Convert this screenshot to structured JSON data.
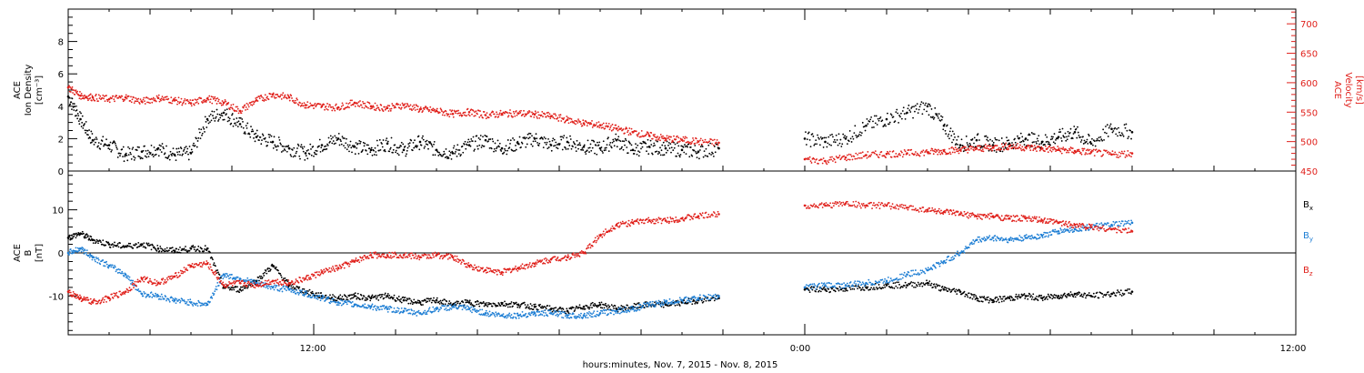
{
  "x_axis": {
    "label": "hours:minutes, Nov.  7, 2015 - Nov.  8, 2015",
    "tick_labels": [
      "12:00",
      "0:00",
      "12:00"
    ]
  },
  "colors": {
    "black": "#000000",
    "red": "#e0201b",
    "blue": "#1f7fd4"
  },
  "chart_data": [
    {
      "type": "scatter",
      "panel": "plasma",
      "ylabel": [
        "ACE",
        "Ion Density",
        "[cm⁻³]"
      ],
      "ylabel_right": [
        "ACE",
        "Velocity",
        "[km/s]"
      ],
      "ylim": [
        0,
        10
      ],
      "yticks": [
        0,
        2,
        4,
        6,
        8
      ],
      "ylim_right": [
        450,
        725
      ],
      "yticks_right": [
        450,
        500,
        550,
        600,
        650,
        700
      ],
      "xlim_hours": [
        6,
        36
      ],
      "gap_hours": [
        22,
        24
      ],
      "series": [
        {
          "axis": "left",
          "color": "black",
          "x_hours": [
            6.0,
            6.3,
            6.6,
            7.0,
            7.4,
            7.8,
            8.2,
            8.6,
            9.0,
            9.4,
            9.8,
            10.2,
            10.6,
            11.0,
            11.4,
            11.8,
            12.2,
            12.6,
            13.0,
            13.4,
            13.8,
            14.2,
            14.6,
            15.0,
            15.4,
            15.8,
            16.2,
            16.6,
            17.0,
            17.4,
            17.8,
            18.2,
            18.6,
            19.0,
            19.4,
            19.8,
            20.2,
            20.6,
            21.0,
            21.4,
            21.9,
            24.0,
            24.5,
            25.0,
            25.5,
            26.0,
            26.5,
            27.0,
            27.4,
            27.8,
            28.2,
            28.6,
            29.0,
            29.4,
            29.8,
            30.2,
            30.6,
            31.0,
            31.5,
            32.0
          ],
          "values": [
            4.6,
            3.2,
            1.9,
            1.6,
            1.0,
            1.2,
            1.4,
            1.0,
            1.1,
            3.2,
            3.6,
            2.9,
            2.1,
            1.8,
            1.4,
            1.1,
            1.6,
            2.0,
            1.5,
            1.3,
            1.7,
            1.3,
            1.8,
            1.3,
            1.1,
            1.6,
            1.9,
            1.4,
            1.7,
            2.0,
            1.6,
            1.8,
            1.5,
            1.4,
            1.9,
            1.3,
            1.5,
            1.4,
            1.3,
            1.2,
            1.4,
            2.0,
            1.8,
            2.0,
            2.8,
            3.2,
            3.6,
            4.0,
            2.8,
            1.6,
            1.9,
            1.6,
            1.7,
            2.0,
            1.8,
            2.1,
            2.4,
            1.7,
            2.6,
            2.4
          ]
        },
        {
          "axis": "right",
          "color": "red",
          "x_hours": [
            6.0,
            6.3,
            6.6,
            7.0,
            7.4,
            7.8,
            8.2,
            8.6,
            9.0,
            9.4,
            9.8,
            10.2,
            10.6,
            11.0,
            11.4,
            11.8,
            12.2,
            12.6,
            13.0,
            13.4,
            13.8,
            14.2,
            14.6,
            15.0,
            15.4,
            15.8,
            16.2,
            16.6,
            17.0,
            17.4,
            17.8,
            18.2,
            18.6,
            19.0,
            19.4,
            19.8,
            20.2,
            20.6,
            21.0,
            21.4,
            21.9,
            24.0,
            24.5,
            25.0,
            25.5,
            26.0,
            26.5,
            27.0,
            27.4,
            27.8,
            28.2,
            28.6,
            29.0,
            29.4,
            29.8,
            30.2,
            30.6,
            31.0,
            31.5,
            32.0
          ],
          "values": [
            592,
            578,
            575,
            572,
            575,
            568,
            574,
            570,
            565,
            573,
            566,
            552,
            570,
            580,
            575,
            562,
            560,
            558,
            566,
            560,
            557,
            562,
            555,
            552,
            547,
            550,
            545,
            547,
            548,
            546,
            543,
            537,
            531,
            528,
            522,
            516,
            510,
            505,
            503,
            500,
            498,
            470,
            467,
            473,
            477,
            479,
            480,
            482,
            484,
            486,
            488,
            490,
            492,
            490,
            488,
            486,
            484,
            482,
            478,
            480
          ]
        }
      ]
    },
    {
      "type": "scatter",
      "panel": "magnetic_field",
      "ylabel": [
        "ACE",
        "B",
        "[nT]"
      ],
      "ylim": [
        -19,
        19
      ],
      "yticks": [
        -10,
        0,
        10
      ],
      "xlim_hours": [
        6,
        36
      ],
      "gap_hours": [
        22,
        24
      ],
      "legend": [
        "Bx",
        "By",
        "Bz"
      ],
      "legend_placement": "right",
      "series": [
        {
          "name": "Bx",
          "color": "black",
          "x_hours": [
            6.0,
            6.3,
            6.6,
            7.0,
            7.4,
            7.8,
            8.2,
            8.6,
            9.0,
            9.4,
            9.8,
            10.2,
            10.6,
            11.0,
            11.4,
            11.8,
            12.2,
            12.6,
            13.0,
            13.4,
            13.8,
            14.2,
            14.6,
            15.0,
            15.4,
            15.8,
            16.2,
            16.6,
            17.0,
            17.4,
            17.8,
            18.2,
            18.6,
            19.0,
            19.4,
            19.8,
            20.2,
            20.6,
            21.0,
            21.4,
            21.9,
            24.0,
            24.5,
            25.0,
            25.5,
            26.0,
            26.5,
            27.0,
            27.4,
            27.8,
            28.2,
            28.6,
            29.0,
            29.4,
            29.8,
            30.2,
            30.6,
            31.0,
            31.5,
            32.0
          ],
          "values": [
            3.5,
            4.5,
            3.0,
            2.0,
            1.5,
            2.0,
            1.0,
            0.5,
            1.0,
            1.0,
            -8.0,
            -8.5,
            -6.5,
            -3.0,
            -7.5,
            -9.0,
            -10.0,
            -10.5,
            -10.0,
            -10.5,
            -10.0,
            -11.0,
            -11.5,
            -11.0,
            -12.0,
            -11.5,
            -12.0,
            -11.8,
            -12.0,
            -12.5,
            -13.0,
            -13.5,
            -12.5,
            -12.0,
            -13.0,
            -12.5,
            -12.0,
            -12.0,
            -11.5,
            -11.0,
            -10.5,
            -8.5,
            -8.5,
            -8.3,
            -8.0,
            -7.5,
            -7.5,
            -7.0,
            -8.5,
            -9.0,
            -10.5,
            -11.0,
            -10.5,
            -10.0,
            -10.5,
            -10.0,
            -9.5,
            -10.0,
            -9.5,
            -9.0
          ]
        },
        {
          "name": "By",
          "color": "blue",
          "x_hours": [
            6.0,
            6.3,
            6.6,
            7.0,
            7.4,
            7.8,
            8.2,
            8.6,
            9.0,
            9.4,
            9.8,
            10.2,
            10.6,
            11.0,
            11.4,
            11.8,
            12.2,
            12.6,
            13.0,
            13.4,
            13.8,
            14.2,
            14.6,
            15.0,
            15.4,
            15.8,
            16.2,
            16.6,
            17.0,
            17.4,
            17.8,
            18.2,
            18.6,
            19.0,
            19.4,
            19.8,
            20.2,
            20.6,
            21.0,
            21.4,
            21.9,
            24.0,
            24.5,
            25.0,
            25.5,
            26.0,
            26.5,
            27.0,
            27.4,
            27.8,
            28.2,
            28.6,
            29.0,
            29.4,
            29.8,
            30.2,
            30.6,
            31.0,
            31.5,
            32.0
          ],
          "values": [
            0.0,
            1.0,
            -1.0,
            -3.0,
            -5.0,
            -9.5,
            -10.0,
            -11.0,
            -11.5,
            -12.0,
            -5.0,
            -6.0,
            -7.0,
            -8.0,
            -8.5,
            -9.5,
            -10.5,
            -11.5,
            -12.0,
            -12.5,
            -13.0,
            -13.5,
            -14.0,
            -13.0,
            -12.5,
            -13.0,
            -14.0,
            -14.5,
            -14.5,
            -14.0,
            -14.0,
            -14.5,
            -14.5,
            -14.0,
            -13.5,
            -13.0,
            -12.0,
            -11.5,
            -11.0,
            -10.5,
            -10.0,
            -8.0,
            -7.5,
            -7.5,
            -7.0,
            -6.5,
            -5.0,
            -4.0,
            -2.0,
            0.0,
            3.0,
            3.5,
            3.0,
            3.5,
            4.0,
            5.0,
            5.5,
            6.0,
            6.5,
            7.0
          ]
        },
        {
          "name": "Bz",
          "color": "red",
          "x_hours": [
            6.0,
            6.3,
            6.6,
            7.0,
            7.4,
            7.8,
            8.2,
            8.6,
            9.0,
            9.4,
            9.8,
            10.2,
            10.6,
            11.0,
            11.4,
            11.8,
            12.2,
            12.6,
            13.0,
            13.4,
            13.8,
            14.2,
            14.6,
            15.0,
            15.4,
            15.8,
            16.2,
            16.6,
            17.0,
            17.4,
            17.8,
            18.2,
            18.6,
            19.0,
            19.4,
            19.8,
            20.2,
            20.6,
            21.0,
            21.4,
            21.9,
            24.0,
            24.5,
            25.0,
            25.5,
            26.0,
            26.5,
            27.0,
            27.4,
            27.8,
            28.2,
            28.6,
            29.0,
            29.4,
            29.8,
            30.2,
            30.6,
            31.0,
            31.5,
            32.0
          ],
          "values": [
            -9.0,
            -10.5,
            -11.5,
            -10.5,
            -9.0,
            -6.0,
            -7.0,
            -5.5,
            -3.0,
            -2.5,
            -7.5,
            -7.0,
            -7.5,
            -6.5,
            -7.0,
            -6.0,
            -4.5,
            -3.5,
            -2.0,
            -0.5,
            -0.5,
            -0.5,
            -1.0,
            -0.5,
            -1.0,
            -3.0,
            -4.0,
            -4.5,
            -3.5,
            -2.5,
            -1.5,
            -1.0,
            0.0,
            4.0,
            6.5,
            7.0,
            7.5,
            7.5,
            8.0,
            8.5,
            9.0,
            11.0,
            11.0,
            11.5,
            11.0,
            11.0,
            10.5,
            10.0,
            9.5,
            9.0,
            8.5,
            8.5,
            8.0,
            8.0,
            7.5,
            7.0,
            6.5,
            6.0,
            5.5,
            5.0
          ]
        }
      ]
    }
  ]
}
